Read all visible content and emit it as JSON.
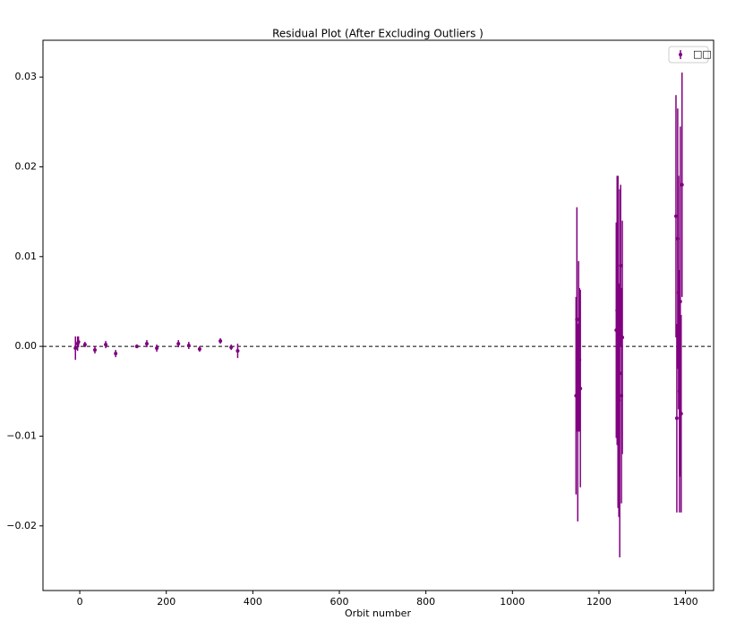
{
  "chart_data": {
    "type": "errorbar",
    "title": "Residual Plot (After Excluding Outliers )",
    "xlabel": "Orbit number",
    "xlim": [
      -85,
      1465
    ],
    "ylim": [
      -0.0272,
      0.0341
    ],
    "xticks": [
      0,
      200,
      400,
      600,
      800,
      1000,
      1200,
      1400
    ],
    "yticks": [
      {
        "value": -0.02,
        "label": "−0.02"
      },
      {
        "value": -0.01,
        "label": "−0.01"
      },
      {
        "value": 0,
        "label": "0.00"
      },
      {
        "value": 0.01,
        "label": "0.01"
      },
      {
        "value": 0.02,
        "label": "0.02"
      },
      {
        "value": 0.03,
        "label": "0.03"
      }
    ],
    "hline": 0,
    "legend": "upper right",
    "series": [
      {
        "name": "□□",
        "color": "#800080",
        "x": [
          -10,
          -5,
          -3,
          12,
          35,
          60,
          83,
          132,
          155,
          178,
          228,
          252,
          277,
          325,
          350,
          365,
          1147,
          1149,
          1151,
          1153,
          1155,
          1157,
          1240,
          1242,
          1244,
          1246,
          1248,
          1250,
          1252,
          1254,
          1378,
          1380,
          1382,
          1384,
          1386,
          1388,
          1390,
          1392
        ],
        "values": [
          -0.0002,
          0.0003,
          0.0005,
          0.0002,
          -0.0004,
          0.0002,
          -0.0008,
          0.0,
          0.0003,
          -0.0002,
          0.0003,
          0.0001,
          -0.0003,
          0.0006,
          -0.0001,
          -0.0005,
          -0.0055,
          0.003,
          -0.0085,
          0.0,
          -0.0015,
          -0.0047,
          0.0018,
          0.004,
          0.0005,
          -0.006,
          -0.003,
          0.009,
          -0.0055,
          0.001,
          0.0145,
          -0.008,
          0.012,
          0.006,
          -0.005,
          0.005,
          -0.0075,
          0.018
        ],
        "errors": [
          0.0013,
          0.0008,
          0.0006,
          0.0003,
          0.0004,
          0.0004,
          0.0004,
          0.0002,
          0.0004,
          0.0004,
          0.0004,
          0.0004,
          0.0003,
          0.0003,
          0.0003,
          0.0008,
          0.011,
          0.0125,
          0.011,
          0.0095,
          0.008,
          0.011,
          0.012,
          0.015,
          0.0185,
          0.013,
          0.0205,
          0.009,
          0.012,
          0.013,
          0.0135,
          0.0105,
          0.0145,
          0.013,
          0.0135,
          0.0195,
          0.011,
          0.0125
        ]
      }
    ]
  }
}
